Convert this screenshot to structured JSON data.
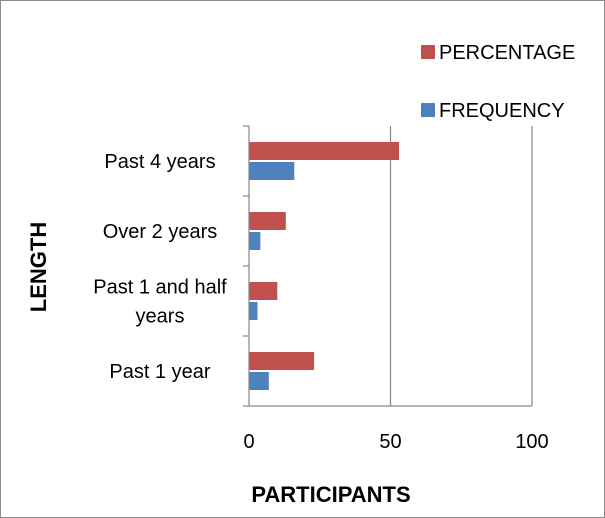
{
  "chart_data": {
    "type": "bar",
    "orientation": "horizontal",
    "categories": [
      "Past 1 year",
      "Past 1 and half years",
      "Over 2 years",
      "Past 4 years"
    ],
    "series": [
      {
        "name": "FREQUENCY",
        "color": "#4f81bd",
        "values": [
          7,
          3,
          4,
          16
        ]
      },
      {
        "name": "PERCENTAGE",
        "color": "#c0504d",
        "values": [
          23,
          10,
          13,
          53
        ]
      }
    ],
    "xlabel": "PARTICIPANTS",
    "ylabel": "LENGTH",
    "xlim": [
      0,
      100
    ],
    "xticks": [
      0,
      50,
      100
    ],
    "grid": "vertical",
    "legend": "top-right"
  }
}
